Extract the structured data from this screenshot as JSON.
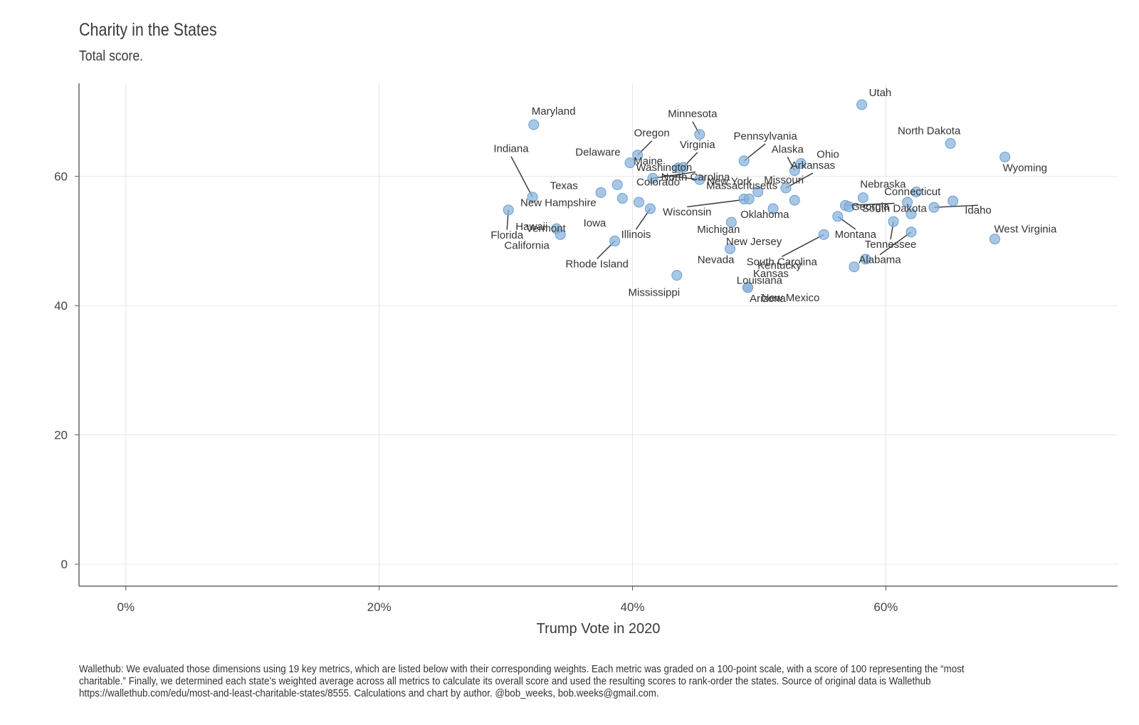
{
  "chart_data": {
    "type": "scatter",
    "title": "Charity in the States",
    "subtitle": "Total score.",
    "xlabel": "Trump Vote in 2020",
    "ylabel": "",
    "xlim": [
      -0.037,
      0.783
    ],
    "ylim": [
      -3.4,
      74.4
    ],
    "x_ticks": [
      0,
      0.2,
      0.4,
      0.6
    ],
    "x_tick_labels": [
      "0%",
      "20%",
      "40%",
      "60%"
    ],
    "y_ticks": [
      0,
      20,
      40,
      60
    ],
    "y_tick_labels": [
      "0",
      "20",
      "40",
      "60"
    ],
    "grid": true,
    "legend": "none",
    "point_color": "#8ab4dd",
    "point_stroke": "#6f9fcc",
    "caption": "Wallethub: We evaluated those dimensions using 19 key metrics, which are listed below with their corresponding weights. Each metric was graded on a 100-point scale, with a score of 100 representing the “most charitable.” Finally, we determined each state’s weighted average across all metrics to calculate its overall score and used the resulting scores to rank-order the states. Source of original data is Wallethub https://wallethub.com/edu/most-and-least-charitable-states/8555. Calculations and chart by author. @bob_weeks, bob.weeks@gmail.com.",
    "points": [
      {
        "label": "Utah",
        "x": 0.581,
        "y": 71.1
      },
      {
        "label": "Maryland",
        "x": 0.322,
        "y": 68.0
      },
      {
        "label": "Minnesota",
        "x": 0.453,
        "y": 66.5
      },
      {
        "label": "North Dakota",
        "x": 0.651,
        "y": 65.1
      },
      {
        "label": "Oregon",
        "x": 0.404,
        "y": 63.3
      },
      {
        "label": "Wyoming",
        "x": 0.694,
        "y": 63.0
      },
      {
        "label": "Pennsylvania",
        "x": 0.488,
        "y": 62.4
      },
      {
        "label": "Delaware",
        "x": 0.398,
        "y": 62.1
      },
      {
        "label": "Ohio",
        "x": 0.533,
        "y": 62.0
      },
      {
        "label": "Virginia",
        "x": 0.44,
        "y": 61.4
      },
      {
        "label": "Alaska",
        "x": 0.528,
        "y": 60.9
      },
      {
        "label": "Maine",
        "x": 0.436,
        "y": 61.3
      },
      {
        "label": "North Carolina",
        "x": 0.416,
        "y": 59.7
      },
      {
        "label": "Washington",
        "x": 0.453,
        "y": 59.5
      },
      {
        "label": "Texas",
        "x": 0.388,
        "y": 58.7
      },
      {
        "label": "Arkansas",
        "x": 0.521,
        "y": 58.2
      },
      {
        "label": "Massachusetts",
        "x": 0.624,
        "y": 57.6
      },
      {
        "label": "New York",
        "x": 0.499,
        "y": 57.6
      },
      {
        "label": "Colorado",
        "x": 0.375,
        "y": 57.5
      },
      {
        "label": "Indiana",
        "x": 0.321,
        "y": 56.8
      },
      {
        "label": "Nebraska",
        "x": 0.582,
        "y": 56.7
      },
      {
        "label": "New Hampshire",
        "x": 0.392,
        "y": 56.6
      },
      {
        "label": "Missouri",
        "x": 0.488,
        "y": 56.5
      },
      {
        "label": "Wisconsin",
        "x": 0.492,
        "y": 56.5
      },
      {
        "label": "Oklahoma",
        "x": 0.528,
        "y": 56.3
      },
      {
        "label": "Connecticut",
        "x": 0.653,
        "y": 56.2
      },
      {
        "label": "Iowa",
        "x": 0.405,
        "y": 56.0
      },
      {
        "label": "Georgia",
        "x": 0.617,
        "y": 56.0
      },
      {
        "label": "South Dakota",
        "x": 0.568,
        "y": 55.5
      },
      {
        "label": "Vermont",
        "x": 0.571,
        "y": 55.3
      },
      {
        "label": "Idaho",
        "x": 0.638,
        "y": 55.2
      },
      {
        "label": "Illinois",
        "x": 0.414,
        "y": 55.0
      },
      {
        "label": "New Jersey",
        "x": 0.511,
        "y": 55.0
      },
      {
        "label": "Florida",
        "x": 0.302,
        "y": 54.8
      },
      {
        "label": "Kentucky",
        "x": 0.62,
        "y": 54.2
      },
      {
        "label": "Montana",
        "x": 0.562,
        "y": 53.8
      },
      {
        "label": "Michigan",
        "x": 0.478,
        "y": 52.9
      },
      {
        "label": "Tennessee",
        "x": 0.606,
        "y": 53.0
      },
      {
        "label": "Hawaii",
        "x": 0.34,
        "y": 51.9
      },
      {
        "label": "Alabama",
        "x": 0.62,
        "y": 51.4
      },
      {
        "label": "California",
        "x": 0.343,
        "y": 51.0
      },
      {
        "label": "South Carolina",
        "x": 0.551,
        "y": 51.0
      },
      {
        "label": "West Virginia",
        "x": 0.686,
        "y": 50.3
      },
      {
        "label": "Rhode Island",
        "x": 0.386,
        "y": 50.0
      },
      {
        "label": "Nevada",
        "x": 0.477,
        "y": 48.8
      },
      {
        "label": "Kansas",
        "x": 0.584,
        "y": 47.2
      },
      {
        "label": "Louisiana",
        "x": 0.575,
        "y": 46.0
      },
      {
        "label": "Mississippi",
        "x": 0.435,
        "y": 44.7
      },
      {
        "label": "New Mexico",
        "x": 0.491,
        "y": 42.8
      },
      {
        "label": "Arizona",
        "x": 0.491,
        "y": 42.8
      }
    ]
  }
}
